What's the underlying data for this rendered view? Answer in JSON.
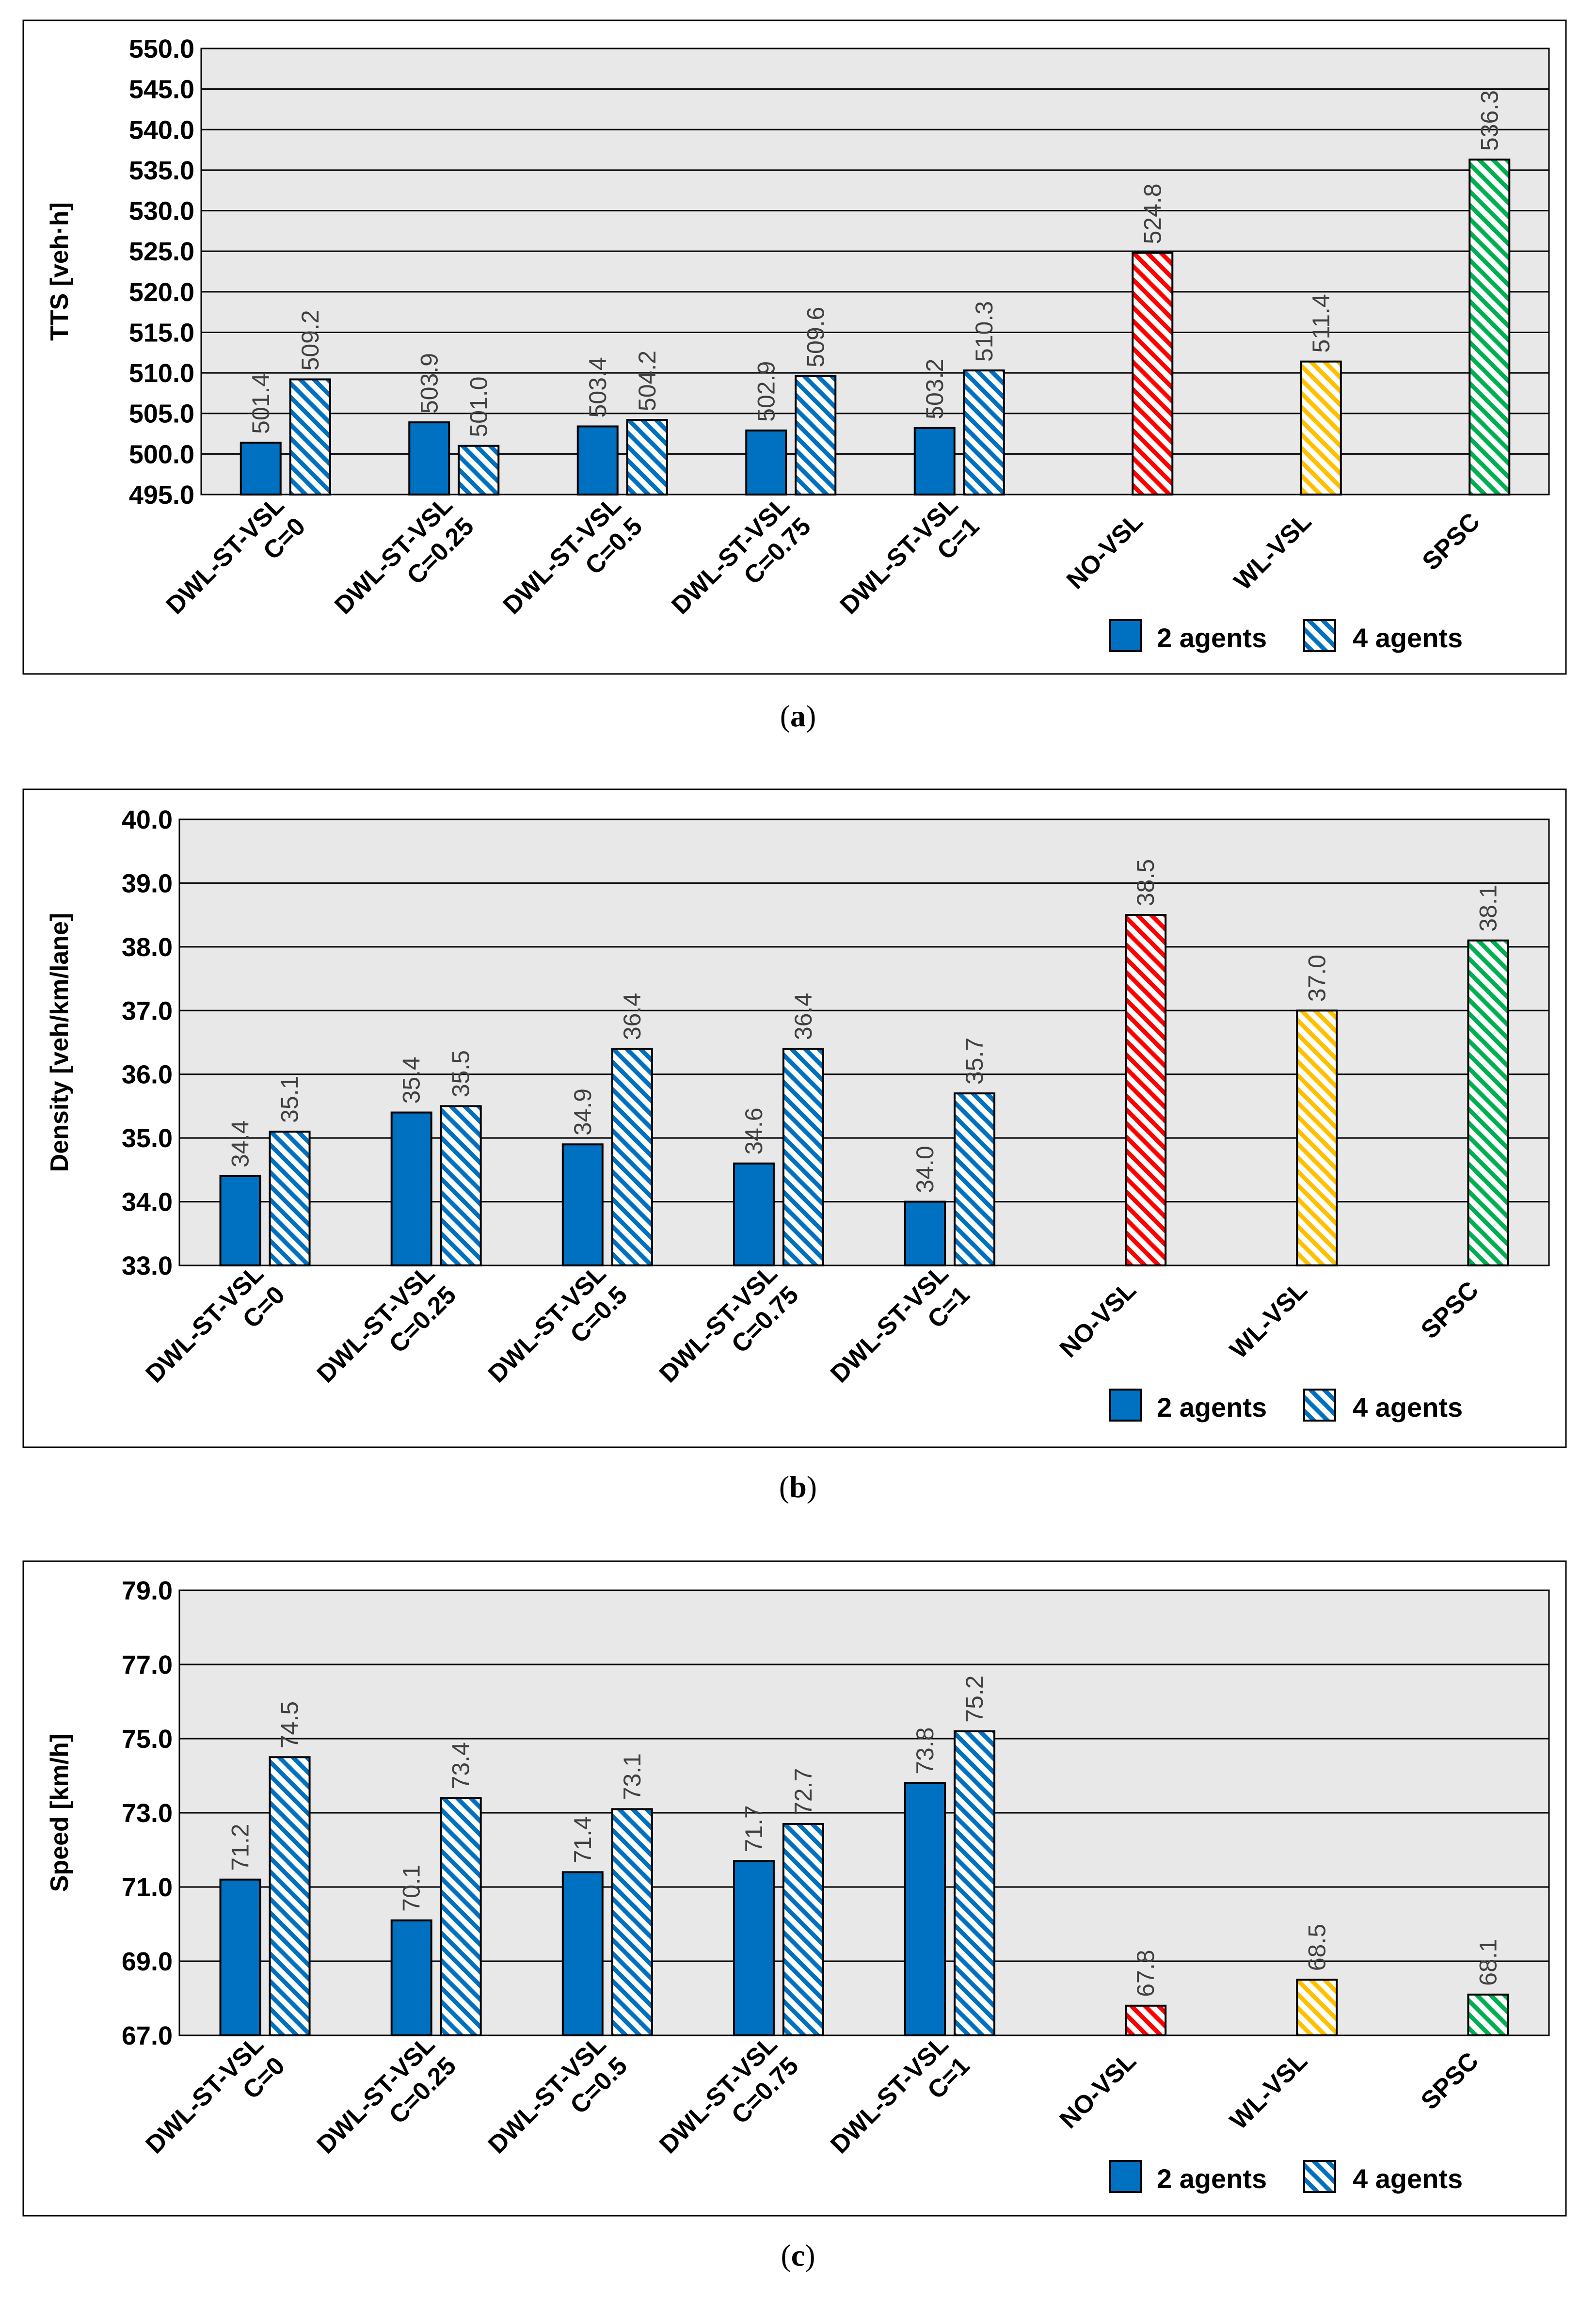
{
  "chart_data": [
    {
      "type": "bar",
      "panel_label": "a",
      "ylabel": "TTS [veh·h]",
      "ylim": [
        495.0,
        550.0
      ],
      "ytick_step": 5.0,
      "yticks": [
        "495.0",
        "500.0",
        "505.0",
        "510.0",
        "515.0",
        "520.0",
        "525.0",
        "530.0",
        "535.0",
        "540.0",
        "545.0",
        "550.0"
      ],
      "grid": true,
      "legend_position": "bottom-right",
      "categories": [
        [
          "DWL-ST-VSL",
          "C=0"
        ],
        [
          "DWL-ST-VSL",
          "C=0.25"
        ],
        [
          "DWL-ST-VSL",
          "C=0.5"
        ],
        [
          "DWL-ST-VSL",
          "C=0.75"
        ],
        [
          "DWL-ST-VSL",
          "C=1"
        ],
        [
          "NO-VSL"
        ],
        [
          "WL-VSL"
        ],
        [
          "SPSC"
        ]
      ],
      "series": [
        {
          "name": "2 agents",
          "values": [
            501.4,
            503.9,
            503.4,
            502.9,
            503.2,
            null,
            null,
            null
          ],
          "labels": [
            "501.4",
            "503.9",
            "503.4",
            "502.9",
            "503.2",
            null,
            null,
            null
          ]
        },
        {
          "name": "4 agents",
          "values": [
            509.2,
            501.0,
            504.2,
            509.6,
            510.3,
            null,
            null,
            null
          ],
          "labels": [
            "509.2",
            "501.0",
            "504.2",
            "509.6",
            "510.3",
            null,
            null,
            null
          ]
        }
      ],
      "baselines": [
        {
          "category": "NO-VSL",
          "value": 524.8,
          "label": "524.8",
          "color": "#ff0000"
        },
        {
          "category": "WL-VSL",
          "value": 511.4,
          "label": "511.4",
          "color": "#ffc000"
        },
        {
          "category": "SPSC",
          "value": 536.3,
          "label": "536.3",
          "color": "#00b050"
        }
      ]
    },
    {
      "type": "bar",
      "panel_label": "b",
      "ylabel": "Density [veh/km/lane]",
      "ylim": [
        33.0,
        40.0
      ],
      "ytick_step": 1.0,
      "yticks": [
        "33.0",
        "34.0",
        "35.0",
        "36.0",
        "37.0",
        "38.0",
        "39.0",
        "40.0"
      ],
      "grid": true,
      "legend_position": "bottom-right",
      "categories": [
        [
          "DWL-ST-VSL",
          "C=0"
        ],
        [
          "DWL-ST-VSL",
          "C=0.25"
        ],
        [
          "DWL-ST-VSL",
          "C=0.5"
        ],
        [
          "DWL-ST-VSL",
          "C=0.75"
        ],
        [
          "DWL-ST-VSL",
          "C=1"
        ],
        [
          "NO-VSL"
        ],
        [
          "WL-VSL"
        ],
        [
          "SPSC"
        ]
      ],
      "series": [
        {
          "name": "2 agents",
          "values": [
            34.4,
            35.4,
            34.9,
            34.6,
            34.0,
            null,
            null,
            null
          ],
          "labels": [
            "34.4",
            "35.4",
            "34.9",
            "34.6",
            "34.0",
            null,
            null,
            null
          ]
        },
        {
          "name": "4 agents",
          "values": [
            35.1,
            35.5,
            36.4,
            36.4,
            35.7,
            null,
            null,
            null
          ],
          "labels": [
            "35.1",
            "35.5",
            "36.4",
            "36.4",
            "35.7",
            null,
            null,
            null
          ]
        }
      ],
      "baselines": [
        {
          "category": "NO-VSL",
          "value": 38.5,
          "label": "38.5",
          "color": "#ff0000"
        },
        {
          "category": "WL-VSL",
          "value": 37.0,
          "label": "37.0",
          "color": "#ffc000"
        },
        {
          "category": "SPSC",
          "value": 38.1,
          "label": "38.1",
          "color": "#00b050"
        }
      ]
    },
    {
      "type": "bar",
      "panel_label": "c",
      "ylabel": "Speed [km/h]",
      "ylim": [
        67.0,
        79.0
      ],
      "ytick_step": 2.0,
      "yticks": [
        "67.0",
        "69.0",
        "71.0",
        "73.0",
        "75.0",
        "77.0",
        "79.0"
      ],
      "grid": true,
      "legend_position": "bottom-right",
      "categories": [
        [
          "DWL-ST-VSL",
          "C=0"
        ],
        [
          "DWL-ST-VSL",
          "C=0.25"
        ],
        [
          "DWL-ST-VSL",
          "C=0.5"
        ],
        [
          "DWL-ST-VSL",
          "C=0.75"
        ],
        [
          "DWL-ST-VSL",
          "C=1"
        ],
        [
          "NO-VSL"
        ],
        [
          "WL-VSL"
        ],
        [
          "SPSC"
        ]
      ],
      "series": [
        {
          "name": "2 agents",
          "values": [
            71.2,
            70.1,
            71.4,
            71.7,
            73.8,
            null,
            null,
            null
          ],
          "labels": [
            "71.2",
            "70.1",
            "71.4",
            "71.7",
            "73.8",
            null,
            null,
            null
          ]
        },
        {
          "name": "4 agents",
          "values": [
            74.5,
            73.4,
            73.1,
            72.7,
            75.2,
            null,
            null,
            null
          ],
          "labels": [
            "74.5",
            "73.4",
            "73.1",
            "72.7",
            "75.2",
            null,
            null,
            null
          ]
        }
      ],
      "baselines": [
        {
          "category": "NO-VSL",
          "value": 67.8,
          "label": "67.8",
          "color": "#ff0000"
        },
        {
          "category": "WL-VSL",
          "value": 68.5,
          "label": "68.5",
          "color": "#ffc000"
        },
        {
          "category": "SPSC",
          "value": 68.1,
          "label": "68.1",
          "color": "#00b050"
        }
      ]
    }
  ],
  "colors": {
    "solid": "#0070c0",
    "hatch": "#0070c0",
    "plot_bg": "#e8e8e8"
  },
  "legend": {
    "solid_label": "2 agents",
    "hatch_label": "4 agents"
  }
}
